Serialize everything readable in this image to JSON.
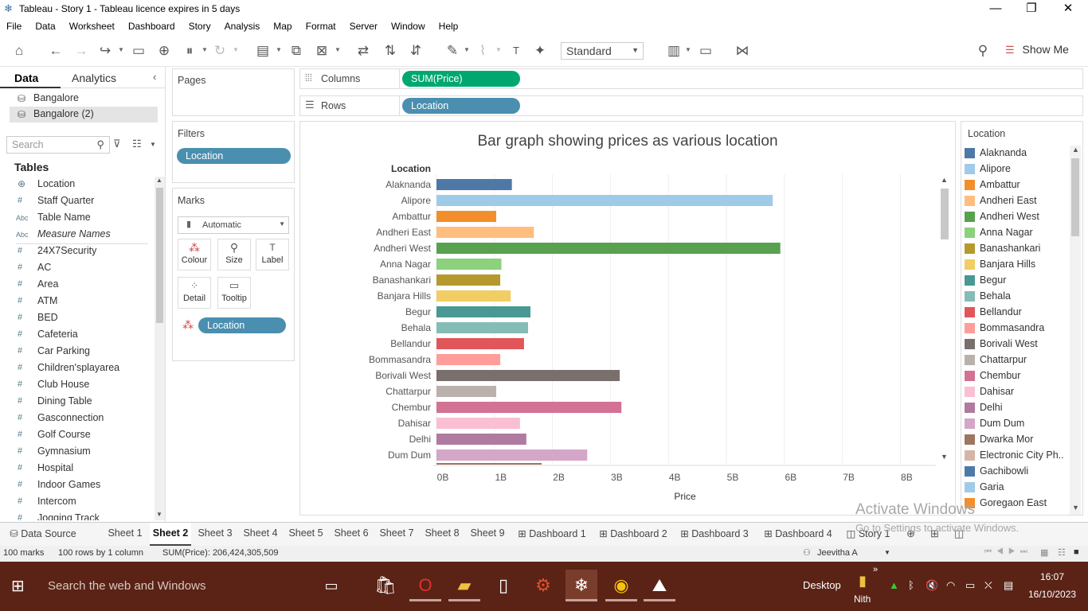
{
  "window": {
    "title": "Tableau - Story 1 - Tableau licence expires in 5 days",
    "minimize": "—",
    "restore": "❐",
    "close": "✕"
  },
  "menu": [
    "File",
    "Data",
    "Worksheet",
    "Dashboard",
    "Story",
    "Analysis",
    "Map",
    "Format",
    "Server",
    "Window",
    "Help"
  ],
  "toolbar": {
    "fit_value": "Standard",
    "show_me": "Show Me"
  },
  "data_pane": {
    "tab_data": "Data",
    "tab_analytics": "Analytics",
    "datasources": [
      "Bangalore",
      "Bangalore (2)"
    ],
    "search_placeholder": "Search",
    "tables_heading": "Tables",
    "fields": [
      {
        "icon": "globe",
        "name": "Location"
      },
      {
        "icon": "hash",
        "name": "Staff Quarter"
      },
      {
        "icon": "abc",
        "name": "Table Name"
      },
      {
        "icon": "abc",
        "name": "Measure Names"
      },
      {
        "icon": "hash",
        "name": "24X7Security"
      },
      {
        "icon": "hash",
        "name": "AC"
      },
      {
        "icon": "hash",
        "name": "Area"
      },
      {
        "icon": "hash",
        "name": "ATM"
      },
      {
        "icon": "hash",
        "name": "BED"
      },
      {
        "icon": "hash",
        "name": "Cafeteria"
      },
      {
        "icon": "hash",
        "name": "Car Parking"
      },
      {
        "icon": "hash",
        "name": "Children'splayarea"
      },
      {
        "icon": "hash",
        "name": "Club House"
      },
      {
        "icon": "hash",
        "name": "Dining Table"
      },
      {
        "icon": "hash",
        "name": "Gasconnection"
      },
      {
        "icon": "hash",
        "name": "Golf Course"
      },
      {
        "icon": "hash",
        "name": "Gymnasium"
      },
      {
        "icon": "hash",
        "name": "Hospital"
      },
      {
        "icon": "hash",
        "name": "Indoor Games"
      },
      {
        "icon": "hash",
        "name": "Intercom"
      },
      {
        "icon": "hash",
        "name": "Jogging Track"
      }
    ]
  },
  "shelves": {
    "pages": "Pages",
    "filters": "Filters",
    "filter_pill": "Location",
    "marks": "Marks",
    "mark_type": "Automatic",
    "mark_buttons": [
      "Colour",
      "Size",
      "Label",
      "Detail",
      "Tooltip"
    ],
    "marks_pill": "Location",
    "columns_label": "Columns",
    "columns_pill": "SUM(Price)",
    "rows_label": "Rows",
    "rows_pill": "Location"
  },
  "chart_data": {
    "type": "bar",
    "orientation": "horizontal",
    "title": "Bar graph showing prices as various location",
    "row_header": "Location",
    "xlabel": "Price",
    "x_ticks": [
      "0B",
      "1B",
      "2B",
      "3B",
      "4B",
      "5B",
      "6B",
      "7B",
      "8B"
    ],
    "xlim": [
      0,
      8.7
    ],
    "unit": "billions",
    "categories": [
      "Alaknanda",
      "Alipore",
      "Ambattur",
      "Andheri East",
      "Andheri West",
      "Anna Nagar",
      "Banashankari",
      "Banjara Hills",
      "Begur",
      "Behala",
      "Bellandur",
      "Bommasandra",
      "Borivali West",
      "Chattarpur",
      "Chembur",
      "Dahisar",
      "Delhi",
      "Dum Dum"
    ],
    "values": [
      1.3,
      5.8,
      1.03,
      1.68,
      5.93,
      1.12,
      1.1,
      1.28,
      1.62,
      1.58,
      1.51,
      1.1,
      3.16,
      1.03,
      3.19,
      1.44,
      1.55,
      2.6
    ],
    "colors": [
      "#4e79a7",
      "#a0cbe8",
      "#f28e2b",
      "#ffbe7d",
      "#59a14f",
      "#8cd17d",
      "#b6992d",
      "#f1ce63",
      "#499894",
      "#86bcb6",
      "#e15759",
      "#ff9d9a",
      "#79706e",
      "#bab0ac",
      "#d37295",
      "#fabfd2",
      "#b07aa1",
      "#d4a6c8"
    ]
  },
  "legend": {
    "title": "Location",
    "items": [
      {
        "name": "Alaknanda",
        "color": "#4e79a7"
      },
      {
        "name": "Alipore",
        "color": "#a0cbe8"
      },
      {
        "name": "Ambattur",
        "color": "#f28e2b"
      },
      {
        "name": "Andheri East",
        "color": "#ffbe7d"
      },
      {
        "name": "Andheri West",
        "color": "#59a14f"
      },
      {
        "name": "Anna Nagar",
        "color": "#8cd17d"
      },
      {
        "name": "Banashankari",
        "color": "#b6992d"
      },
      {
        "name": "Banjara Hills",
        "color": "#f1ce63"
      },
      {
        "name": "Begur",
        "color": "#499894"
      },
      {
        "name": "Behala",
        "color": "#86bcb6"
      },
      {
        "name": "Bellandur",
        "color": "#e15759"
      },
      {
        "name": "Bommasandra",
        "color": "#ff9d9a"
      },
      {
        "name": "Borivali West",
        "color": "#79706e"
      },
      {
        "name": "Chattarpur",
        "color": "#bab0ac"
      },
      {
        "name": "Chembur",
        "color": "#d37295"
      },
      {
        "name": "Dahisar",
        "color": "#fabfd2"
      },
      {
        "name": "Delhi",
        "color": "#b07aa1"
      },
      {
        "name": "Dum Dum",
        "color": "#d4a6c8"
      },
      {
        "name": "Dwarka Mor",
        "color": "#9d7660"
      },
      {
        "name": "Electronic City Ph..",
        "color": "#d7b5a6"
      },
      {
        "name": "Gachibowli",
        "color": "#4e79a7"
      },
      {
        "name": "Garia",
        "color": "#a0cbe8"
      },
      {
        "name": "Goregaon East",
        "color": "#f28e2b"
      }
    ]
  },
  "sheet_tabs": [
    "Data Source",
    "Sheet 1",
    "Sheet 2",
    "Sheet 3",
    "Sheet 4",
    "Sheet 5",
    "Sheet 6",
    "Sheet 7",
    "Sheet 8",
    "Sheet 9",
    "Dashboard 1",
    "Dashboard 2",
    "Dashboard 3",
    "Dashboard 4",
    "Story 1"
  ],
  "active_tab": "Sheet 2",
  "status": {
    "marks": "100 marks",
    "rows": "100 rows by 1 column",
    "sum": "SUM(Price): 206,424,305,509",
    "user": "Jeevitha A"
  },
  "watermark": {
    "line1": "Activate Windows",
    "line2": "Go to Settings to activate Windows."
  },
  "taskbar": {
    "search_placeholder": "Search the web and Windows",
    "desktop": "Desktop",
    "nith": "Nith",
    "chevron": "»",
    "time": "16:07",
    "date": "16/10/2023"
  }
}
